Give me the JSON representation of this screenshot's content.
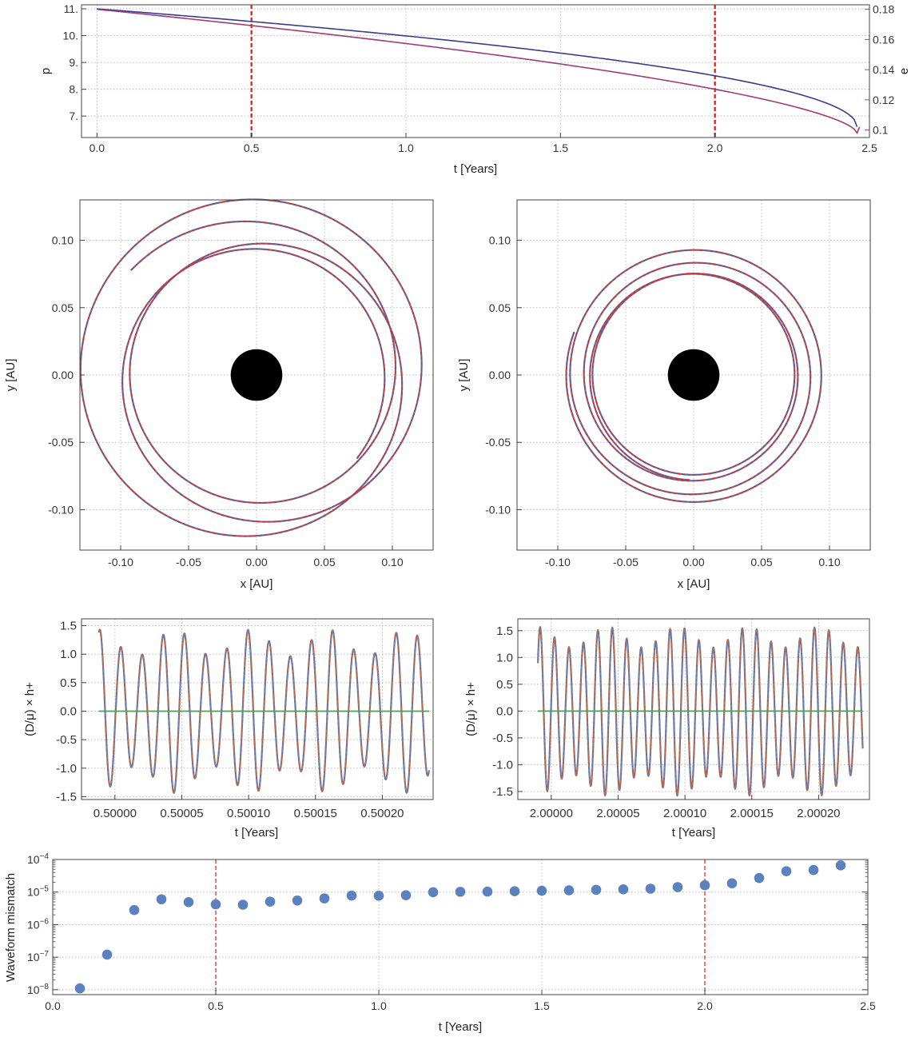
{
  "colors": {
    "p": "#3b3b8f",
    "e": "#9e3d73",
    "e_axis": "#a04878",
    "p_axis": "#4a4a9a",
    "red": "#e8261c",
    "orbit_blue": "#5a6fa6",
    "wave_blue": "#4f79b8",
    "wave_orange": "#e0662e",
    "wave_green": "#3fa84a",
    "dot": "#5b81be",
    "bh": "#000000"
  },
  "chart_data": [
    {
      "type": "line",
      "id": "evolution",
      "xlabel": "t [Years]",
      "ylabel_left": "p",
      "ylabel_right": "e",
      "xlim": [
        -0.05,
        2.5
      ],
      "ylim_left": [
        6.2,
        11.15
      ],
      "ylim_right": [
        0.095,
        0.183
      ],
      "xticks": [
        "0.0",
        "0.5",
        "1.0",
        "1.5",
        "2.0",
        "2.5"
      ],
      "xtick_values": [
        0,
        0.5,
        1.0,
        1.5,
        2.0,
        2.5
      ],
      "yticks_left": [
        "7.",
        "8.",
        "9.",
        "10.",
        "11."
      ],
      "ytick_values_left": [
        7,
        8,
        9,
        10,
        11
      ],
      "yticks_right": [
        "0.1",
        "0.12",
        "0.14",
        "0.16",
        "0.18"
      ],
      "ytick_values_right": [
        0.1,
        0.12,
        0.14,
        0.16,
        0.18
      ],
      "vlines": [
        0.5,
        2.0
      ],
      "series": [
        {
          "axis": "left",
          "t_end": 2.46,
          "start": 11.0,
          "end": 6.6,
          "exponent": 0.5
        },
        {
          "axis": "right",
          "t_end": 2.46,
          "start": 0.18,
          "end": 0.098,
          "exponent": 0.62
        }
      ]
    },
    {
      "type": "scatter",
      "id": "orbit-early",
      "xlabel": "x [AU]",
      "ylabel": "y [AU]",
      "xlim": [
        -0.13,
        0.13
      ],
      "ylim": [
        -0.13,
        0.13
      ],
      "xticks": [
        "-0.10",
        "-0.05",
        "0.00",
        "0.05",
        "0.10"
      ],
      "xtick_values": [
        -0.1,
        -0.05,
        0.0,
        0.05,
        0.1
      ],
      "yticks": [
        "-0.10",
        "-0.05",
        "0.00",
        "0.05",
        "0.10"
      ],
      "ytick_values": [
        -0.1,
        -0.05,
        0.0,
        0.05,
        0.1
      ],
      "black_hole_radius": 0.019,
      "orbit": {
        "p": 0.109,
        "e": 0.17,
        "precession_per_rev_deg": 210,
        "revolutions": 3.5,
        "start_angle_deg": -40,
        "decay": 0.0
      }
    },
    {
      "type": "scatter",
      "id": "orbit-late",
      "xlabel": "x [AU]",
      "ylabel": "y [AU]",
      "xlim": [
        -0.13,
        0.13
      ],
      "ylim": [
        -0.13,
        0.13
      ],
      "xticks": [
        "-0.10",
        "-0.05",
        "0.00",
        "0.05",
        "0.10"
      ],
      "xtick_values": [
        -0.1,
        -0.05,
        0.0,
        0.05,
        0.1
      ],
      "yticks": [
        "-0.10",
        "-0.05",
        "0.00",
        "0.05",
        "0.10"
      ],
      "ytick_values": [
        -0.1,
        -0.05,
        0.0,
        0.05,
        0.1
      ],
      "black_hole_radius": 0.019,
      "orbit": {
        "p": 0.083,
        "e": 0.12,
        "precession_per_rev_deg": 300,
        "revolutions": 4.3,
        "start_angle_deg": 160,
        "decay": 0.0
      }
    },
    {
      "type": "line",
      "id": "waveform-early",
      "xlabel": "t [Years]",
      "ylabel": "(D/μ) × h+",
      "xlim": [
        0.499975,
        0.500238
      ],
      "ylim": [
        -1.55,
        1.62
      ],
      "xticks": [
        "0.50000",
        "0.50005",
        "0.50010",
        "0.50015",
        "0.50020"
      ],
      "xtick_values": [
        0.5,
        0.50005,
        0.5001,
        0.50015,
        0.5002
      ],
      "yticks": [
        "-1.5",
        "-1.0",
        "-0.5",
        "0.0",
        "0.5",
        "1.0",
        "1.5"
      ],
      "ytick_values": [
        -1.5,
        -1.0,
        -0.5,
        0.0,
        0.5,
        1.0,
        1.5
      ],
      "wave": {
        "t_start": 0.499988,
        "t_end": 0.500235,
        "cycles": 15.6,
        "amp_mean": 1.2,
        "amp_mod": 0.22,
        "mod_cycles": 4.3,
        "phase": 1.3
      },
      "series": [
        {
          "name": "",
          "color": "wave_blue"
        },
        {
          "name": "",
          "color": "wave_orange"
        },
        {
          "name": "",
          "color": "wave_green",
          "constant": 0.0
        }
      ]
    },
    {
      "type": "line",
      "id": "waveform-late",
      "xlabel": "t [Years]",
      "ylabel": "(D/μ) × h+",
      "xlim": [
        1.999975,
        2.000238
      ],
      "ylim": [
        -1.65,
        1.72
      ],
      "xticks": [
        "2.00000",
        "2.00005",
        "2.00010",
        "2.00015",
        "2.00020"
      ],
      "xtick_values": [
        2.0,
        2.00005,
        2.0001,
        2.00015,
        2.0002
      ],
      "yticks": [
        "-1.5",
        "-1.0",
        "-0.5",
        "0.0",
        "0.5",
        "1.0",
        "1.5"
      ],
      "ytick_values": [
        -1.5,
        -1.0,
        -0.5,
        0.0,
        0.5,
        1.0,
        1.5
      ],
      "wave": {
        "t_start": 1.99999,
        "t_end": 2.000233,
        "cycles": 22.5,
        "amp_mean": 1.38,
        "amp_mod": 0.18,
        "mod_cycles": 4.6,
        "phase": 0.6
      },
      "series": [
        {
          "name": "",
          "color": "wave_blue"
        },
        {
          "name": "",
          "color": "wave_orange"
        },
        {
          "name": "",
          "color": "wave_green",
          "constant": 0.0
        }
      ]
    },
    {
      "type": "scatter",
      "id": "mismatch",
      "xlabel": "t [Years]",
      "ylabel": "Waveform mismatch",
      "log_y": true,
      "xlim": [
        0.0,
        2.5
      ],
      "ylim_log10": [
        -8.15,
        -4.0
      ],
      "xticks": [
        "0.0",
        "0.5",
        "1.0",
        "1.5",
        "2.0",
        "2.5"
      ],
      "xtick_values": [
        0,
        0.5,
        1.0,
        1.5,
        2.0,
        2.5
      ],
      "ytick_exponents": [
        -8,
        -7,
        -6,
        -5,
        -4
      ],
      "ytick_base": "10",
      "vlines": [
        0.5,
        2.0
      ],
      "x": [
        0.0833,
        0.1667,
        0.25,
        0.3333,
        0.4167,
        0.5,
        0.5833,
        0.6667,
        0.75,
        0.8333,
        0.9167,
        1.0,
        1.0833,
        1.1667,
        1.25,
        1.3333,
        1.4167,
        1.5,
        1.5833,
        1.6667,
        1.75,
        1.8333,
        1.9167,
        2.0,
        2.0833,
        2.1667,
        2.25,
        2.3333,
        2.4167
      ],
      "y": [
        1.1e-08,
        1.2e-07,
        2.8e-06,
        6e-06,
        4.9e-06,
        4.2e-06,
        4.1e-06,
        5.1e-06,
        5.5e-06,
        6.4e-06,
        7.8e-06,
        7.7e-06,
        8e-06,
        9.9e-06,
        1.02e-05,
        1.03e-05,
        1.06e-05,
        1.1e-05,
        1.13e-05,
        1.17e-05,
        1.21e-05,
        1.27e-05,
        1.42e-05,
        1.62e-05,
        1.85e-05,
        2.7e-05,
        4.35e-05,
        4.75e-05,
        6.6e-05
      ]
    }
  ]
}
